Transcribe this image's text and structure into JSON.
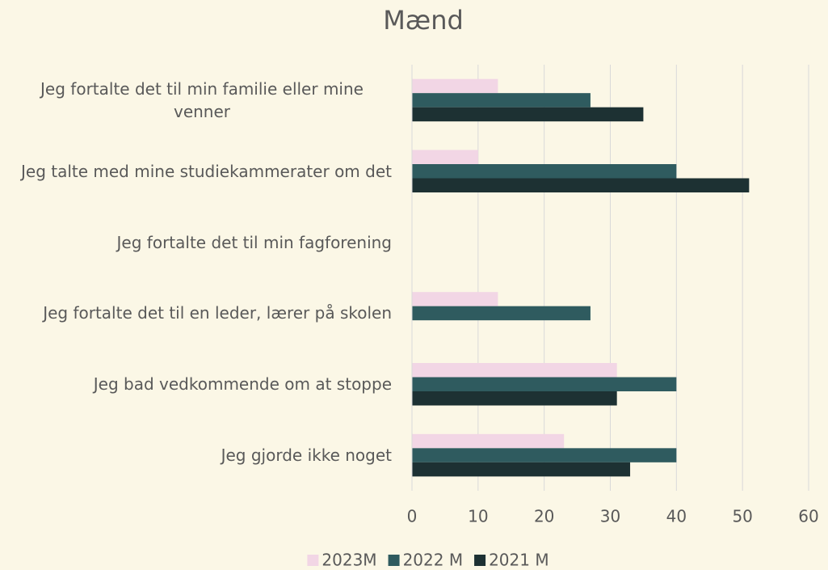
{
  "chart_data": {
    "type": "hbar",
    "title": "Mænd",
    "categories": [
      "Jeg fortalte det til min familie eller mine venner",
      "Jeg talte med mine studiekammerater om det",
      "Jeg fortalte det til min fagforening",
      "Jeg fortalte det til en leder, lærer på skolen",
      "Jeg bad vedkommende om at stoppe",
      "Jeg gjorde ikke noget"
    ],
    "series": [
      {
        "name": "2023M",
        "color": "#f2d6e5",
        "values": [
          13,
          10,
          0,
          13,
          31,
          23
        ]
      },
      {
        "name": "2022 M",
        "color": "#2f5b5f",
        "values": [
          27,
          40,
          0,
          27,
          40,
          40
        ]
      },
      {
        "name": "2021 M",
        "color": "#1d3133",
        "values": [
          35,
          51,
          0,
          0,
          31,
          33
        ]
      }
    ],
    "xlim": [
      0,
      60
    ],
    "xticks": [
      0,
      10,
      20,
      30,
      40,
      50,
      60
    ],
    "grid": true,
    "legend": "bottom"
  }
}
